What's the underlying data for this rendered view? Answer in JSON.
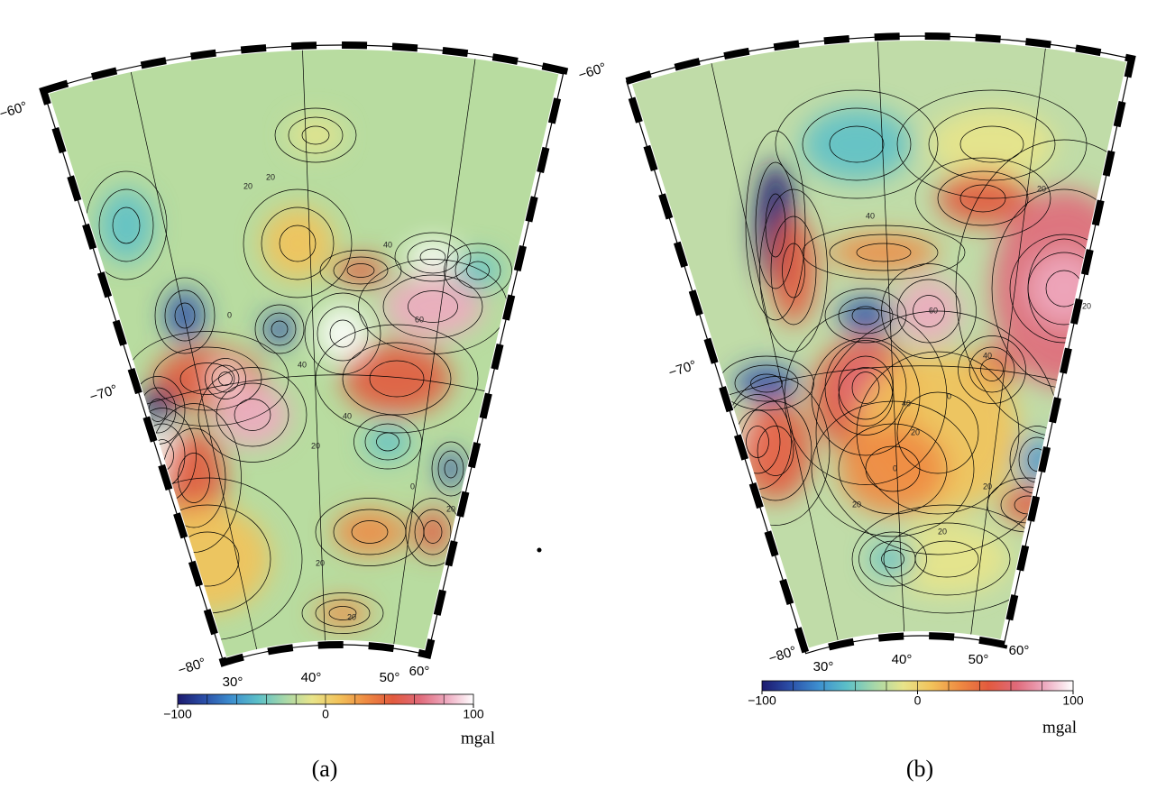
{
  "panels": [
    {
      "label": "(a)",
      "lat_labels": [
        "−60°",
        "−70°",
        "−80°"
      ],
      "lon_labels": [
        "30°",
        "40°",
        "50°",
        "60°"
      ],
      "contour_labels": [
        "20",
        "20",
        "0",
        "40",
        "60",
        "40",
        "20",
        "0",
        "20",
        "40",
        "20",
        "20"
      ],
      "colorbar": {
        "lim": [
          -100,
          100
        ],
        "ticks": [
          {
            "value": -100,
            "label": "−100"
          },
          0,
          100
        ],
        "unit": "mgal"
      }
    },
    {
      "label": "(b)",
      "lat_labels": [
        "−60°",
        "−70°",
        "−80°"
      ],
      "lon_labels": [
        "30°",
        "40°",
        "50°",
        "60°"
      ],
      "contour_labels": [
        "20",
        "40",
        "60",
        "20",
        "40",
        "20",
        "0",
        "20",
        "20",
        "0",
        "40",
        "20"
      ],
      "colorbar": {
        "lim": [
          -100,
          100
        ],
        "ticks": [
          {
            "value": -100,
            "label": "−100"
          },
          0,
          100
        ],
        "unit": "mgal"
      }
    }
  ],
  "colormap": [
    "#1c1a6e",
    "#2b4fa8",
    "#3d8fcf",
    "#5cc0c8",
    "#a8d8a8",
    "#e8e48a",
    "#f2c25a",
    "#ee8a42",
    "#e25a3e",
    "#e06a7a",
    "#eeaac0",
    "#ffffff"
  ]
}
